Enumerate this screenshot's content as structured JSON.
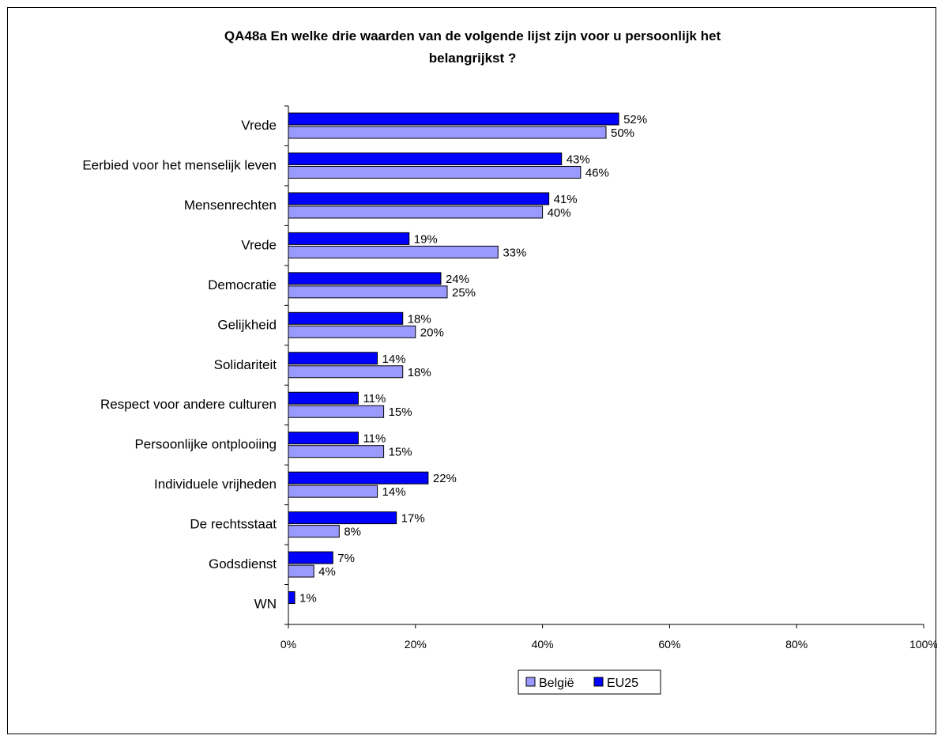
{
  "chart_data": {
    "type": "bar",
    "orientation": "horizontal",
    "title": "QA48a En welke drie waarden van de volgende lijst zijn voor u persoonlijk het belangrijkst ?",
    "title_lines": [
      "QA48a En welke drie waarden van de volgende lijst zijn voor u persoonlijk het",
      "belangrijkst ?"
    ],
    "categories": [
      "Vrede",
      "Eerbied voor het menselijk leven",
      "Mensenrechten",
      "Vrede",
      "Democratie",
      "Gelijkheid",
      "Solidariteit",
      "Respect voor andere culturen",
      "Persoonlijke ontplooiing",
      "Individuele vrijheden",
      "De rechtsstaat",
      "Godsdienst",
      "WN"
    ],
    "series": [
      {
        "name": "EU25",
        "color": "#0000ff",
        "values": [
          52,
          43,
          41,
          19,
          24,
          18,
          14,
          11,
          11,
          22,
          17,
          7,
          1
        ],
        "labels": [
          "52%",
          "43%",
          "41%",
          "19%",
          "24%",
          "18%",
          "14%",
          "11%",
          "11%",
          "22%",
          "17%",
          "7%",
          "1%"
        ]
      },
      {
        "name": "België",
        "color": "#9999ff",
        "values": [
          50,
          46,
          40,
          33,
          25,
          20,
          18,
          15,
          15,
          14,
          8,
          4,
          null
        ],
        "labels": [
          "50%",
          "46%",
          "40%",
          "33%",
          "25%",
          "20%",
          "18%",
          "15%",
          "15%",
          "14%",
          "8%",
          "4%",
          ""
        ]
      }
    ],
    "xlim": [
      0,
      100
    ],
    "xticks": [
      "0%",
      "20%",
      "40%",
      "60%",
      "80%",
      "100%"
    ],
    "legend": {
      "position": "bottom",
      "entries": [
        {
          "name": "België",
          "color": "#9999ff"
        },
        {
          "name": "EU25",
          "color": "#0000ff"
        }
      ]
    },
    "grid": false
  }
}
